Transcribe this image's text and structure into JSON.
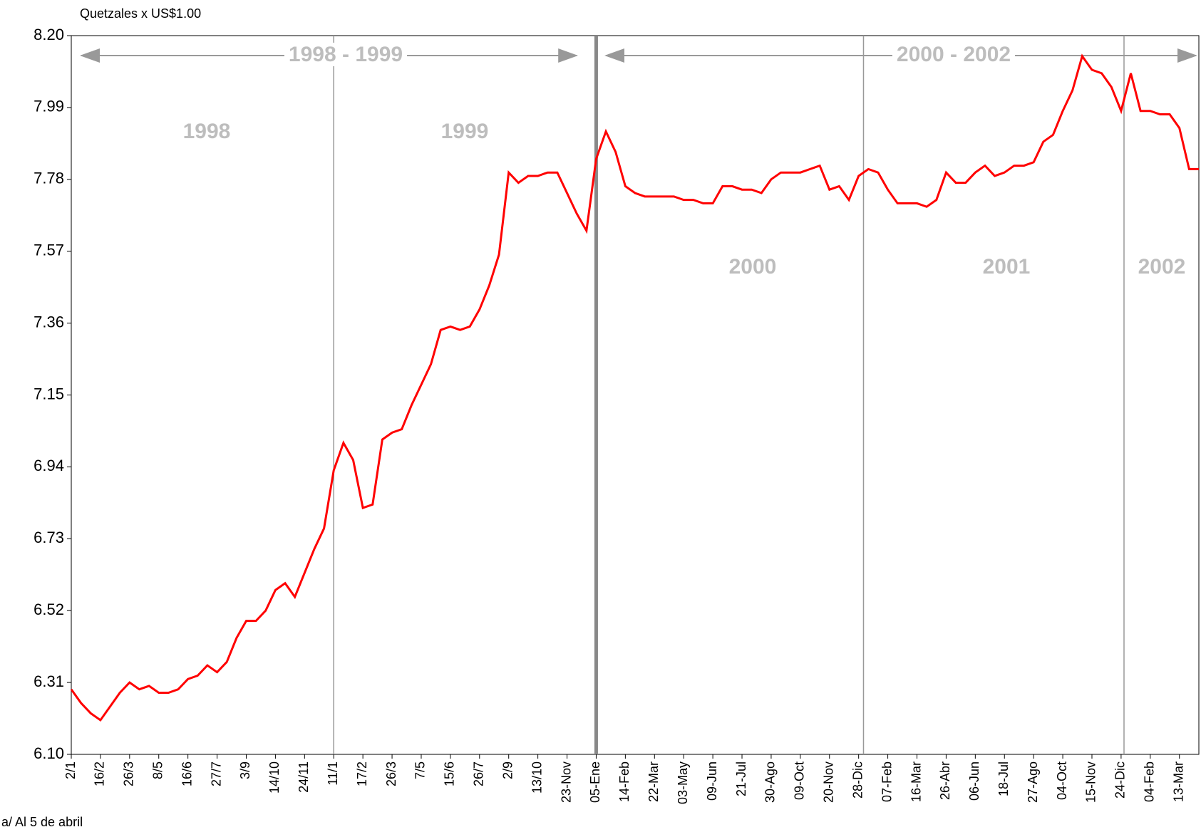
{
  "chart_data": {
    "type": "line",
    "y_axis_title": "Quetzales x US$1.00",
    "footnote": "a/ Al   5   de abril",
    "annotations": [
      "1998 - 1999",
      "2000 - 2002",
      "1998",
      "1999",
      "2000",
      "2001",
      "2002"
    ],
    "categories": [
      "2/1",
      null,
      null,
      "16/2",
      null,
      null,
      "26/3",
      null,
      null,
      "8/5",
      null,
      null,
      "16/6",
      null,
      null,
      "27/7",
      null,
      null,
      "3/9",
      null,
      null,
      "14/10",
      null,
      null,
      "24/11",
      null,
      null,
      "11/1",
      null,
      null,
      "17/2",
      null,
      null,
      "26/3",
      null,
      null,
      "7/5",
      null,
      null,
      "15/6",
      null,
      null,
      "26/7",
      null,
      null,
      "2/9",
      null,
      null,
      "13/10",
      null,
      null,
      "23-Nov",
      null,
      null,
      "05-Ene",
      null,
      null,
      "14-Feb",
      null,
      null,
      "22-Mar",
      null,
      null,
      "03-May",
      null,
      null,
      "09-Jun",
      null,
      null,
      "21-Jul",
      null,
      null,
      "30-Ago",
      null,
      null,
      "09-Oct",
      null,
      null,
      "20-Nov",
      null,
      null,
      "28-Dic",
      null,
      null,
      "07-Feb",
      null,
      null,
      "16-Mar",
      null,
      null,
      "26-Abr",
      null,
      null,
      "06-Jun",
      null,
      null,
      "18-Jul",
      null,
      null,
      "27-Ago",
      null,
      null,
      "04-Oct",
      null,
      null,
      "15-Nov",
      null,
      null,
      "24-Dic",
      null,
      null,
      "04-Feb",
      null,
      null,
      "13-Mar",
      null,
      null
    ],
    "series": [
      {
        "color": "#ff0000",
        "values": [
          6.29,
          6.25,
          6.22,
          6.2,
          6.24,
          6.28,
          6.31,
          6.29,
          6.3,
          6.28,
          6.28,
          6.29,
          6.32,
          6.33,
          6.36,
          6.34,
          6.37,
          6.44,
          6.49,
          6.49,
          6.52,
          6.58,
          6.6,
          6.56,
          6.63,
          6.7,
          6.76,
          6.93,
          7.01,
          6.96,
          6.82,
          6.83,
          7.02,
          7.04,
          7.05,
          7.12,
          7.18,
          7.24,
          7.34,
          7.35,
          7.34,
          7.35,
          7.4,
          7.47,
          7.56,
          7.8,
          7.77,
          7.79,
          7.79,
          7.8,
          7.8,
          7.74,
          7.68,
          7.63,
          7.84,
          7.92,
          7.86,
          7.76,
          7.74,
          7.73,
          7.73,
          7.73,
          7.73,
          7.72,
          7.72,
          7.71,
          7.71,
          7.76,
          7.76,
          7.75,
          7.75,
          7.74,
          7.78,
          7.8,
          7.8,
          7.8,
          7.81,
          7.82,
          7.75,
          7.76,
          7.72,
          7.79,
          7.81,
          7.8,
          7.75,
          7.71,
          7.71,
          7.71,
          7.7,
          7.72,
          7.8,
          7.77,
          7.77,
          7.8,
          7.82,
          7.79,
          7.8,
          7.82,
          7.82,
          7.83,
          7.89,
          7.91,
          7.98,
          8.04,
          8.14,
          8.1,
          8.09,
          8.05,
          7.98,
          8.09,
          7.98,
          7.98,
          7.97,
          7.97,
          7.93,
          7.81,
          7.81
        ]
      }
    ],
    "ylim": [
      6.1,
      8.2
    ],
    "yticks": [
      {
        "value": 6.1,
        "label": "6.10"
      },
      6.31,
      6.52,
      6.73,
      6.94,
      7.15,
      7.36,
      7.57,
      7.78,
      7.99,
      {
        "value": 8.2,
        "label": "8.20"
      }
    ]
  }
}
